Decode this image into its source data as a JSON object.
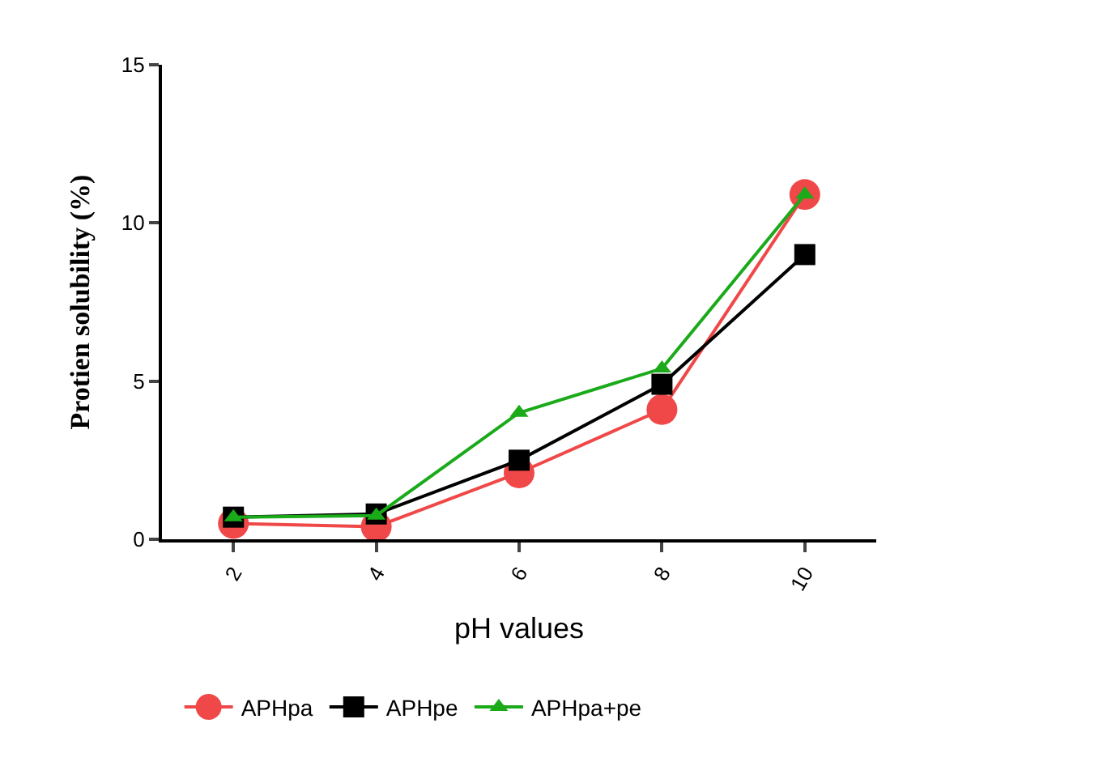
{
  "chart_data": {
    "type": "line",
    "xlabel": "pH values",
    "ylabel": "Protien solubility (%)",
    "categories": [
      "2",
      "4",
      "6",
      "8",
      "10"
    ],
    "ylim": [
      0,
      15
    ],
    "yticks": [
      0,
      5,
      10,
      15
    ],
    "grid": false,
    "legend": "bottom",
    "series": [
      {
        "name": "APHpa",
        "color": "#f04848",
        "marker": "circle",
        "values": [
          0.5,
          0.4,
          2.1,
          4.1,
          10.9
        ]
      },
      {
        "name": "APHpe",
        "color": "#000000",
        "marker": "square",
        "values": [
          0.7,
          0.8,
          2.5,
          4.9,
          9.0
        ]
      },
      {
        "name": "APHpa+pe",
        "color": "#1aaa1a",
        "marker": "triangle",
        "values": [
          0.7,
          0.75,
          4.0,
          5.4,
          10.9
        ]
      }
    ]
  }
}
